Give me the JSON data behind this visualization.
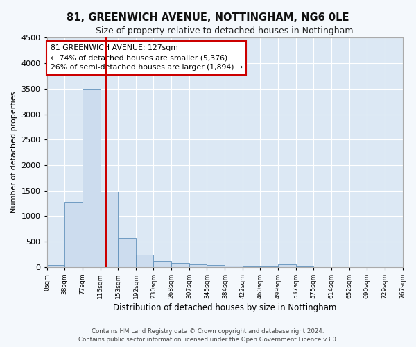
{
  "title": "81, GREENWICH AVENUE, NOTTINGHAM, NG6 0LE",
  "subtitle": "Size of property relative to detached houses in Nottingham",
  "xlabel": "Distribution of detached houses by size in Nottingham",
  "ylabel": "Number of detached properties",
  "footer_line1": "Contains HM Land Registry data © Crown copyright and database right 2024.",
  "footer_line2": "Contains public sector information licensed under the Open Government Licence v3.0.",
  "bin_edges": [
    0,
    38,
    77,
    115,
    153,
    192,
    230,
    268,
    307,
    345,
    384,
    422,
    460,
    499,
    537,
    575,
    614,
    652,
    690,
    729,
    767
  ],
  "bar_heights": [
    40,
    1270,
    3500,
    1480,
    570,
    240,
    115,
    80,
    50,
    35,
    20,
    15,
    10,
    50,
    5,
    0,
    0,
    0,
    0,
    0
  ],
  "bar_color": "#ccdcee",
  "bar_edge_color": "#6090bb",
  "property_size": 127,
  "vline_color": "#cc0000",
  "annotation_line1": "81 GREENWICH AVENUE: 127sqm",
  "annotation_line2": "← 74% of detached houses are smaller (5,376)",
  "annotation_line3": "26% of semi-detached houses are larger (1,894) →",
  "annotation_box_color": "#ffffff",
  "annotation_box_edge": "#cc0000",
  "ylim": [
    0,
    4500
  ],
  "yticks": [
    0,
    500,
    1000,
    1500,
    2000,
    2500,
    3000,
    3500,
    4000,
    4500
  ],
  "bg_color": "#dce8f4",
  "grid_color": "#ffffff",
  "fig_bg_color": "#f4f8fc",
  "tick_labels": [
    "0sqm",
    "38sqm",
    "77sqm",
    "115sqm",
    "153sqm",
    "192sqm",
    "230sqm",
    "268sqm",
    "307sqm",
    "345sqm",
    "384sqm",
    "422sqm",
    "460sqm",
    "499sqm",
    "537sqm",
    "575sqm",
    "614sqm",
    "652sqm",
    "690sqm",
    "729sqm",
    "767sqm"
  ]
}
